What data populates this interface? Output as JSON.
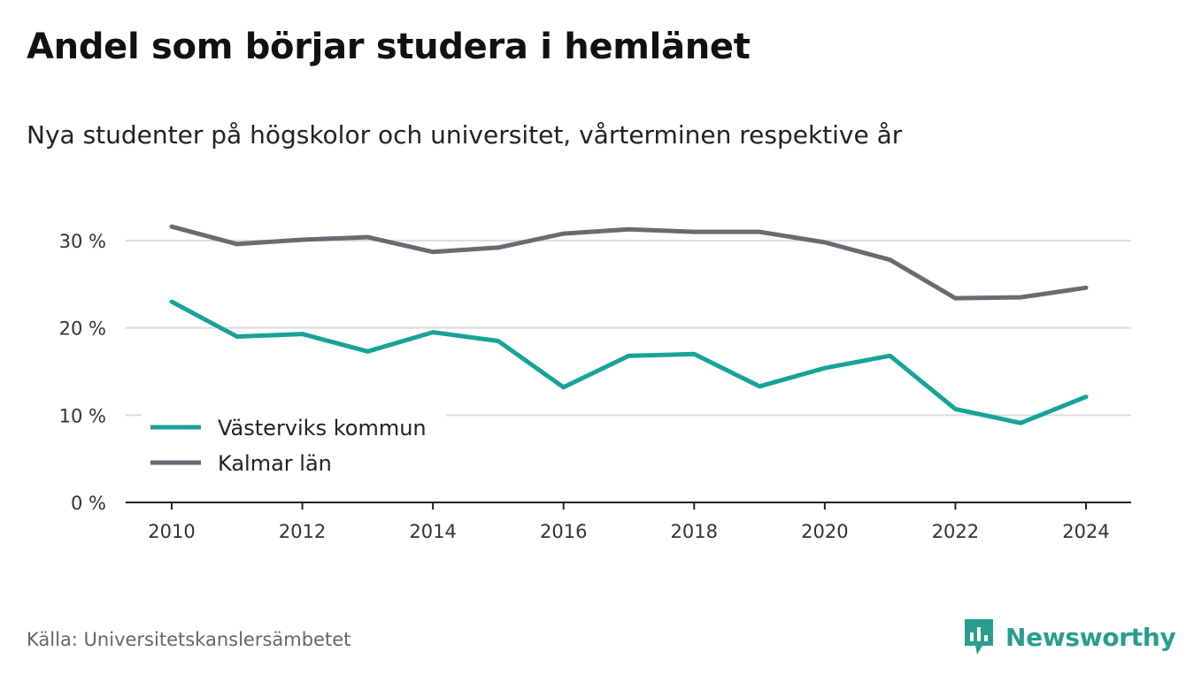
{
  "title": "Andel som börjar studera i hemlänet",
  "subtitle": "Nya studenter på högskolor och universitet, vårterminen respektive år",
  "source": "Källa: Universitetskanslersämbetet",
  "brand": {
    "name": "Newsworthy",
    "icon": "newsworthy-chart-icon",
    "color": "#2a9d8f"
  },
  "chart_data": {
    "type": "line",
    "x": [
      2010,
      2011,
      2012,
      2013,
      2014,
      2015,
      2016,
      2017,
      2018,
      2019,
      2020,
      2021,
      2022,
      2023,
      2024
    ],
    "xticks": [
      "2010",
      "2012",
      "2014",
      "2016",
      "2018",
      "2020",
      "2022",
      "2024"
    ],
    "yticks": [
      "0 %",
      "10 %",
      "20 %",
      "30 %"
    ],
    "ylim": [
      0,
      30
    ],
    "grid": true,
    "legend_position": "bottom-left",
    "series": [
      {
        "name": "Västerviks kommun",
        "color": "#17a398",
        "values": [
          23.0,
          19.0,
          19.3,
          17.3,
          19.5,
          18.5,
          13.2,
          16.8,
          17.0,
          13.3,
          15.4,
          16.8,
          10.7,
          9.1,
          12.1
        ]
      },
      {
        "name": "Kalmar län",
        "color": "#6b6a70",
        "values": [
          31.6,
          29.6,
          30.1,
          30.4,
          28.7,
          29.2,
          30.8,
          31.3,
          31.0,
          31.0,
          29.8,
          27.8,
          23.4,
          23.5,
          24.6
        ]
      }
    ]
  }
}
